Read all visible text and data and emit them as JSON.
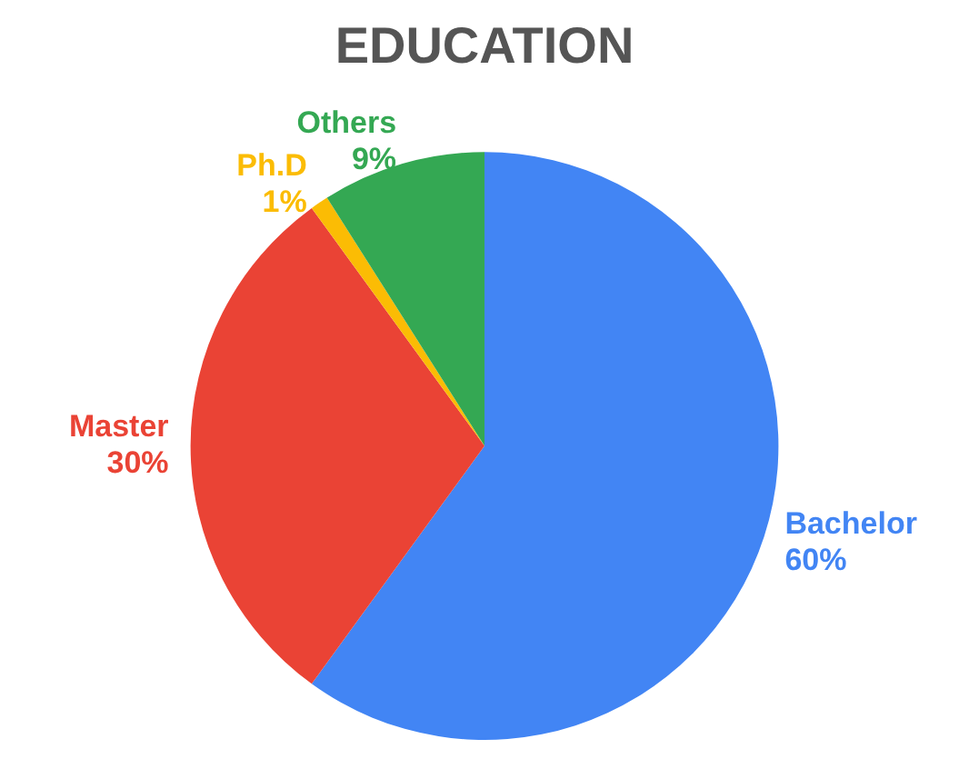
{
  "chart_data": {
    "type": "pie",
    "title": "EDUCATION",
    "categories": [
      "Bachelor",
      "Master",
      "Ph.D",
      "Others"
    ],
    "values": [
      60,
      30,
      1,
      9
    ],
    "colors": [
      "#4285f4",
      "#ea4335",
      "#fbbc04",
      "#34a853"
    ],
    "value_labels": [
      "60%",
      "30%",
      "1%",
      "9%"
    ],
    "legend": false
  }
}
